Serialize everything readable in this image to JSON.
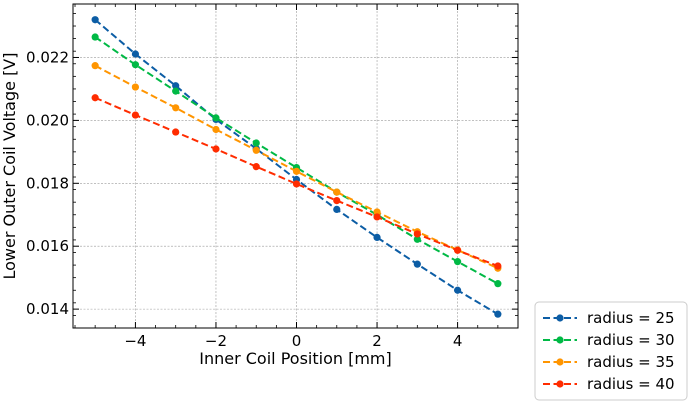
{
  "chart_data": {
    "type": "line",
    "xlabel": "Inner Coil Position [mm]",
    "ylabel": "Lower Outer Coil Voltage [V]",
    "xlim": [
      -5.55,
      5.5
    ],
    "ylim": [
      0.0134,
      0.0237
    ],
    "xticks": [
      -4,
      -2,
      0,
      2,
      4
    ],
    "xtick_labels": [
      "−4",
      "−2",
      "0",
      "2",
      "4"
    ],
    "yticks": [
      0.014,
      0.016,
      0.018,
      0.02,
      0.022
    ],
    "ytick_labels": [
      "0.014",
      "0.016",
      "0.018",
      "0.020",
      "0.022"
    ],
    "grid": true,
    "legend_position": "bottom-right, outside plot area",
    "line_style": "dashed with circle markers",
    "x": [
      -5,
      -4,
      -3,
      -2,
      -1,
      0,
      1,
      2,
      3,
      4,
      5
    ],
    "series": [
      {
        "name": "radius = 25",
        "color": "#0c5da5",
        "values": [
          0.0232,
          0.02211,
          0.0211,
          0.02003,
          0.0191,
          0.01812,
          0.01717,
          0.01628,
          0.01543,
          0.0146,
          0.01384
        ]
      },
      {
        "name": "radius = 30",
        "color": "#00b945",
        "values": [
          0.02265,
          0.02177,
          0.02093,
          0.02008,
          0.01928,
          0.0185,
          0.01772,
          0.017,
          0.01622,
          0.01551,
          0.01481
        ]
      },
      {
        "name": "radius = 35",
        "color": "#ff9500",
        "values": [
          0.02174,
          0.02106,
          0.0204,
          0.01971,
          0.01905,
          0.01838,
          0.01772,
          0.01709,
          0.01646,
          0.01588,
          0.0153
        ]
      },
      {
        "name": "radius = 40",
        "color": "#ff2c00",
        "values": [
          0.02072,
          0.02017,
          0.01963,
          0.01909,
          0.01853,
          0.01798,
          0.01745,
          0.01693,
          0.01639,
          0.01587,
          0.01537
        ]
      }
    ]
  }
}
